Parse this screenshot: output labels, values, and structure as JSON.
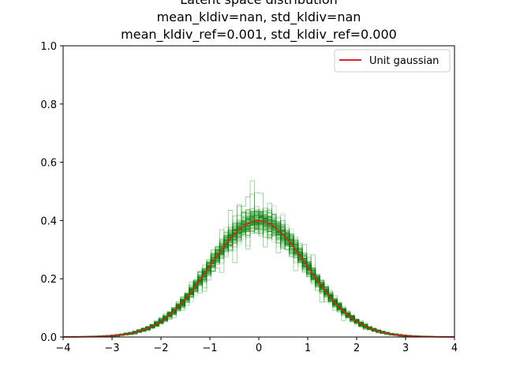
{
  "chart_data": {
    "type": "line",
    "title_lines": [
      "Latent space distribution",
      "mean_kldiv=nan, std_kldiv=nan",
      "mean_kldiv_ref=0.001, std_kldiv_ref=0.000"
    ],
    "xlabel": "",
    "ylabel": "",
    "xlim": [
      -4,
      4
    ],
    "ylim": [
      0,
      1.0
    ],
    "xticks": [
      -4,
      -3,
      -2,
      -1,
      0,
      1,
      2,
      3,
      4
    ],
    "xtick_labels": [
      "−4",
      "−3",
      "−2",
      "−1",
      "0",
      "1",
      "2",
      "3",
      "4"
    ],
    "yticks": [
      0,
      0.2,
      0.4,
      0.6,
      0.8,
      1.0
    ],
    "ytick_labels": [
      "0.0",
      "0.2",
      "0.4",
      "0.6",
      "0.8",
      "1.0"
    ],
    "grid": false,
    "legend_position": "top-right",
    "series": [
      {
        "name": "Unit gaussian",
        "color": "#d62728",
        "x": [
          -4,
          -3.5,
          -3,
          -2.5,
          -2,
          -1.5,
          -1,
          -0.5,
          0,
          0.5,
          1,
          1.5,
          2,
          2.5,
          3,
          3.5,
          4
        ],
        "y": [
          0.0001,
          0.0009,
          0.0044,
          0.0175,
          0.054,
          0.1295,
          0.242,
          0.3521,
          0.3989,
          0.3521,
          0.242,
          0.1295,
          0.054,
          0.0175,
          0.0044,
          0.0009,
          0.0001
        ]
      },
      {
        "role": "latent histograms (many overlaid step outlines)",
        "color": "#008000",
        "x": [
          -4,
          -3.5,
          -3,
          -2.5,
          -2,
          -1.5,
          -1,
          -0.5,
          0,
          0.5,
          1,
          1.5,
          2,
          2.5,
          3,
          3.5,
          4
        ],
        "y": [
          0.0001,
          0.0009,
          0.0044,
          0.0175,
          0.054,
          0.1295,
          0.242,
          0.3521,
          0.3989,
          0.3521,
          0.242,
          0.1295,
          0.054,
          0.0175,
          0.0044,
          0.0009,
          0.0001
        ],
        "peak_max": 0.58
      }
    ]
  }
}
